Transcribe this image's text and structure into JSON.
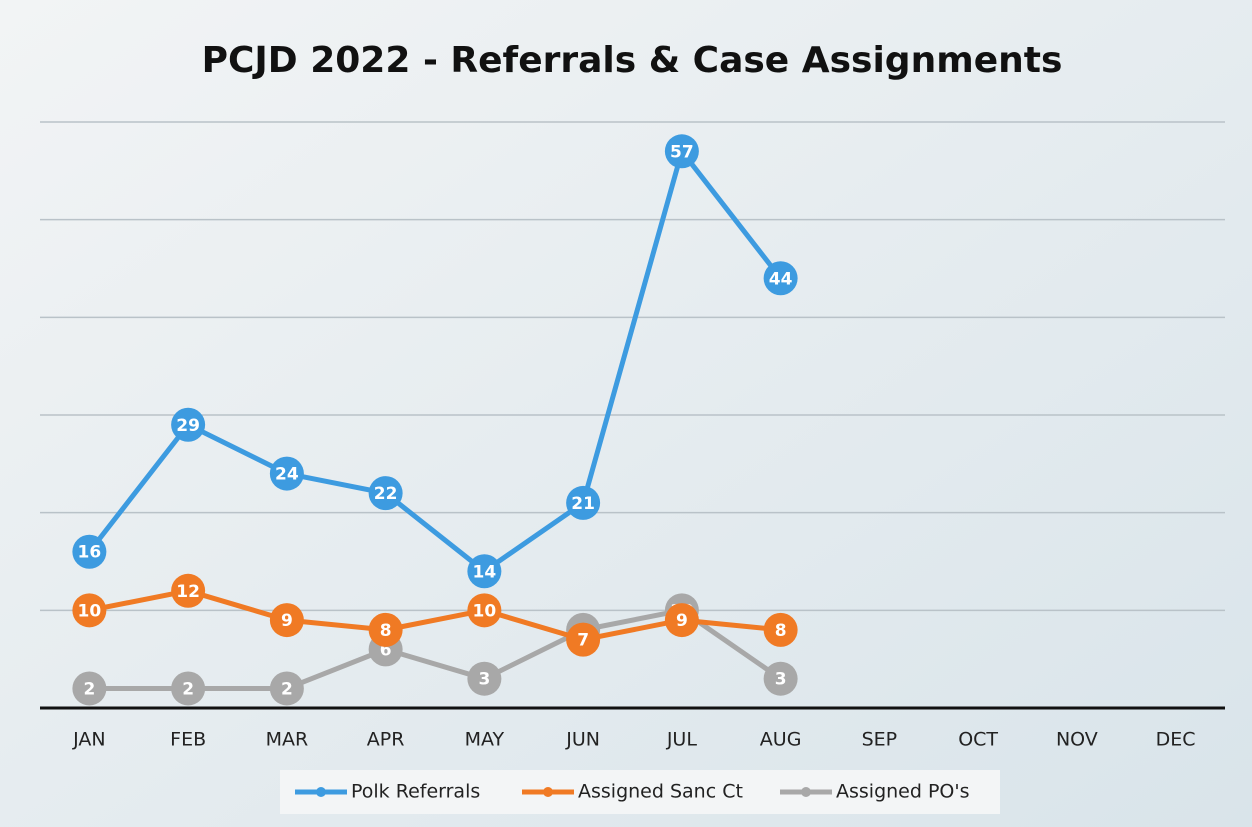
{
  "chart_data": {
    "type": "line",
    "title": "PCJD 2022 - Referrals & Case Assignments",
    "categories": [
      "JAN",
      "FEB",
      "MAR",
      "APR",
      "MAY",
      "JUN",
      "JUL",
      "AUG",
      "SEP",
      "OCT",
      "NOV",
      "DEC"
    ],
    "series": [
      {
        "name": "Polk Referrals",
        "color": "#3d9be0",
        "values": [
          16,
          29,
          24,
          22,
          14,
          21,
          57,
          44,
          null,
          null,
          null,
          null
        ]
      },
      {
        "name": "Assigned Sanc Ct",
        "color": "#f07a24",
        "values": [
          10,
          12,
          9,
          8,
          10,
          7,
          9,
          8,
          null,
          null,
          null,
          null
        ]
      },
      {
        "name": "Assigned PO's",
        "color": "#a8a8a8",
        "values": [
          2,
          2,
          2,
          6,
          3,
          8,
          10,
          3,
          null,
          null,
          null,
          null
        ]
      }
    ],
    "ylim": [
      0,
      60
    ],
    "yticks": [
      0,
      10,
      20,
      30,
      40,
      50,
      60
    ],
    "grid": true,
    "legend": "bottom"
  }
}
